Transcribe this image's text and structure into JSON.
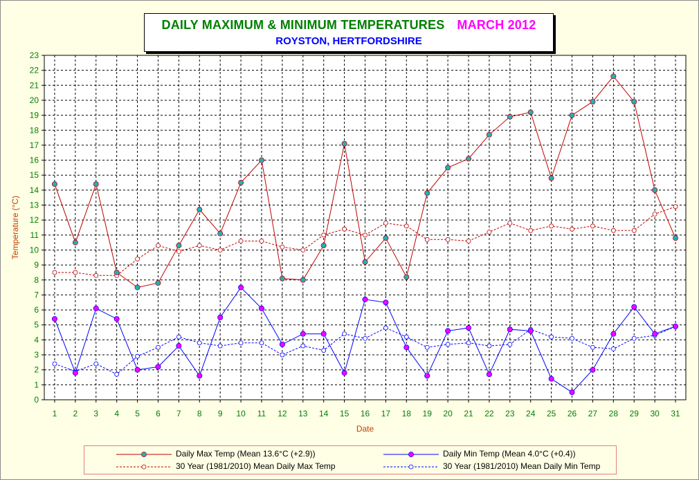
{
  "title": {
    "main": "DAILY MAXIMUM &  MINIMUM  TEMPERATURES",
    "month": "MARCH 2012",
    "location": "ROYSTON, HERTFORDSHIRE"
  },
  "colors": {
    "max": "#c00000",
    "min": "#0000ff",
    "marker_max": "#20b0c0",
    "marker_min": "#ff00ff",
    "axis_text": "#008000",
    "axis_label": "#c04000",
    "background": "#ffffe6"
  },
  "chart_data": {
    "type": "line",
    "xlabel": "Date",
    "ylabel": "Temperature (°C)",
    "ylim": [
      0,
      23
    ],
    "xlim": [
      1,
      31
    ],
    "grid": true,
    "legend_position": "bottom",
    "x": [
      1,
      2,
      3,
      4,
      5,
      6,
      7,
      8,
      9,
      10,
      11,
      12,
      13,
      14,
      15,
      16,
      17,
      18,
      19,
      20,
      21,
      22,
      23,
      24,
      25,
      26,
      27,
      28,
      29,
      30,
      31
    ],
    "series": [
      {
        "name": "Daily Max Temp (Mean 13.6°C (+2.9))",
        "values": [
          14.4,
          10.5,
          14.4,
          8.5,
          7.5,
          7.8,
          10.3,
          12.7,
          11.1,
          14.5,
          16.0,
          8.1,
          8.0,
          10.3,
          17.1,
          9.2,
          10.8,
          8.2,
          13.8,
          15.5,
          16.1,
          17.7,
          18.9,
          19.2,
          14.8,
          19.0,
          19.9,
          21.6,
          19.9,
          14.0,
          10.8
        ]
      },
      {
        "name": "Daily Min Temp (Mean 4.0°C (+0.4))",
        "values": [
          5.4,
          1.8,
          6.1,
          5.4,
          2.0,
          2.2,
          3.6,
          1.6,
          5.5,
          7.5,
          6.1,
          3.7,
          4.4,
          4.4,
          1.8,
          6.7,
          6.5,
          3.5,
          1.6,
          4.6,
          4.8,
          1.7,
          4.7,
          4.6,
          1.4,
          0.5,
          2.0,
          4.4,
          6.2,
          4.4,
          4.9
        ]
      },
      {
        "name": "30 Year (1981/2010) Mean Daily Max Temp",
        "values": [
          8.5,
          8.5,
          8.3,
          8.3,
          9.4,
          10.3,
          9.9,
          10.3,
          10.0,
          10.6,
          10.6,
          10.2,
          10.0,
          11.0,
          11.4,
          11.0,
          11.8,
          11.6,
          10.7,
          10.7,
          10.6,
          11.2,
          11.8,
          11.3,
          11.6,
          11.4,
          11.6,
          11.3,
          11.3,
          12.4,
          12.9
        ]
      },
      {
        "name": "30 Year (1981/2010) Mean Daily Min Temp",
        "values": [
          2.4,
          1.9,
          2.4,
          1.7,
          2.9,
          3.5,
          4.2,
          3.8,
          3.6,
          3.8,
          3.8,
          3.0,
          3.6,
          3.3,
          4.4,
          4.1,
          4.8,
          4.2,
          3.5,
          3.7,
          3.8,
          3.6,
          3.7,
          4.7,
          4.2,
          4.1,
          3.5,
          3.4,
          4.1,
          4.3,
          4.9
        ]
      }
    ]
  }
}
